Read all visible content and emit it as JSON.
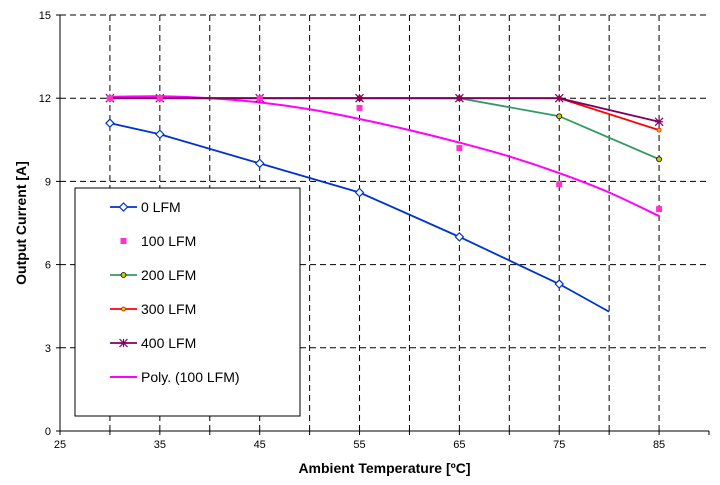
{
  "chart_data": {
    "type": "line",
    "title": "",
    "xlabel": "Ambient Temperature [ºC]",
    "ylabel": "Output Current [A]",
    "xlim": [
      25,
      90
    ],
    "ylim": [
      0,
      15
    ],
    "xticks": [
      25,
      35,
      45,
      55,
      65,
      75,
      85
    ],
    "yticks": [
      0,
      3,
      6,
      9,
      12,
      15
    ],
    "grid": "dashed",
    "legend_position": "bottom-left",
    "series": [
      {
        "name": "0 LFM",
        "color": "#0033CC",
        "marker": "diamond",
        "x": [
          30,
          35,
          45,
          55,
          65,
          75,
          80
        ],
        "y": [
          11.1,
          10.7,
          9.65,
          8.6,
          7.0,
          5.3,
          4.3
        ],
        "marker_points": 6
      },
      {
        "name": "100 LFM",
        "color": "#FF33CC",
        "marker": "square",
        "line": false,
        "x": [
          30,
          35,
          45,
          55,
          65,
          75,
          85
        ],
        "y": [
          12.0,
          12.0,
          12.0,
          11.65,
          10.2,
          8.9,
          8.0
        ]
      },
      {
        "name": "200 LFM",
        "color": "#339966",
        "marker": "circle",
        "x": [
          30,
          35,
          45,
          55,
          65,
          75,
          85
        ],
        "y": [
          12.0,
          12.0,
          12.0,
          12.0,
          12.0,
          11.35,
          9.8
        ]
      },
      {
        "name": "300 LFM",
        "color": "#FF0000",
        "marker": "circle-small",
        "x": [
          30,
          35,
          45,
          55,
          65,
          75,
          85
        ],
        "y": [
          12.0,
          12.0,
          12.0,
          12.0,
          12.0,
          12.0,
          10.85
        ]
      },
      {
        "name": "400 LFM",
        "color": "#800060",
        "marker": "star",
        "x": [
          30,
          35,
          45,
          55,
          65,
          75,
          85
        ],
        "y": [
          12.0,
          12.0,
          12.0,
          12.0,
          12.0,
          12.0,
          11.15
        ]
      },
      {
        "name": "Poly. (100 LFM)",
        "color": "#FF00FF",
        "marker": "none",
        "trendline": true,
        "x": [
          30,
          35,
          40,
          45,
          50,
          55,
          60,
          65,
          70,
          75,
          80,
          85
        ],
        "y": [
          12.05,
          12.07,
          12.0,
          11.85,
          11.6,
          11.25,
          10.85,
          10.4,
          9.9,
          9.3,
          8.6,
          7.75
        ]
      }
    ]
  }
}
